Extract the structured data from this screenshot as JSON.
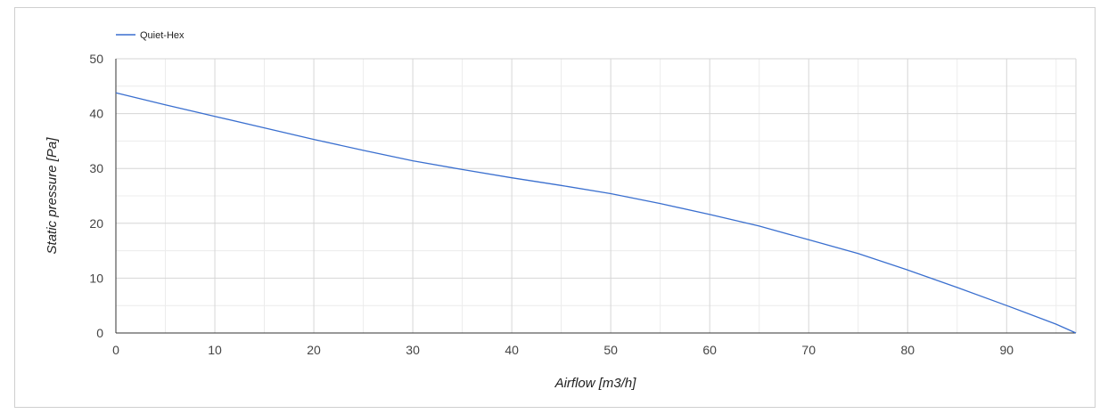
{
  "chart_data": {
    "type": "line",
    "xlabel": "Airflow [m3/h]",
    "ylabel": "Static pressure [Pa]",
    "xlim": [
      0,
      97
    ],
    "ylim": [
      0,
      50
    ],
    "x_ticks": [
      "0",
      "10",
      "20",
      "30",
      "40",
      "50",
      "60",
      "70",
      "80",
      "90"
    ],
    "y_ticks": [
      "0",
      "10",
      "20",
      "30",
      "40",
      "50"
    ],
    "grid": true,
    "legend_position": "top-left",
    "series": [
      {
        "name": "Quiet-Hex",
        "color": "#3a6fcf",
        "x": [
          0,
          5,
          10,
          15,
          20,
          25,
          30,
          35,
          40,
          45,
          50,
          55,
          60,
          65,
          70,
          75,
          80,
          85,
          90,
          95,
          97
        ],
        "y": [
          43.8,
          41.6,
          39.5,
          37.4,
          35.3,
          33.3,
          31.4,
          29.8,
          28.3,
          26.9,
          25.4,
          23.6,
          21.6,
          19.5,
          17.0,
          14.5,
          11.5,
          8.3,
          5.0,
          1.6,
          0
        ]
      }
    ]
  }
}
